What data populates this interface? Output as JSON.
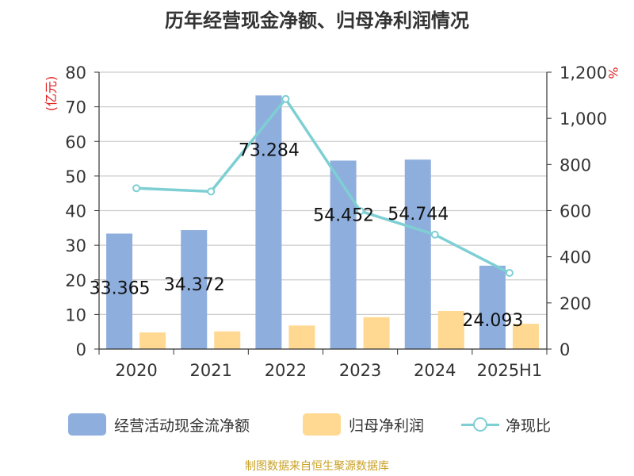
{
  "title": "历年经营现金净额、归母净利润情况",
  "source": "制图数据来自恒生聚源数据库",
  "colors": {
    "op_cash": "#8eaedd",
    "net_profit": "#ffd891",
    "ratio": "#7ecfd4",
    "grid": "#cccccc",
    "axis": "#333333",
    "unit_label": "#e02020"
  },
  "chart_data": {
    "type": "bar+line",
    "categories": [
      "2020",
      "2021",
      "2022",
      "2023",
      "2024",
      "2025H1"
    ],
    "y_left": {
      "label": "(亿元)",
      "min": 0,
      "max": 80,
      "ticks": [
        "0",
        "10",
        "20",
        "30",
        "40",
        "50",
        "60",
        "70",
        "80"
      ]
    },
    "y_right": {
      "label": "%",
      "min": 0,
      "max": 1200,
      "ticks": [
        "0",
        "200",
        "400",
        "600",
        "800",
        "1,000",
        "1,200"
      ]
    },
    "series": [
      {
        "name": "经营活动现金流净额",
        "type": "bar",
        "axis": "left",
        "values": [
          33.365,
          34.372,
          73.284,
          54.452,
          54.744,
          24.093
        ],
        "labels": [
          "33.365",
          "34.372",
          "73.284",
          "54.452",
          "54.744",
          "24.093"
        ]
      },
      {
        "name": "归母净利润",
        "type": "bar",
        "axis": "left",
        "values": [
          4.8,
          5.1,
          6.8,
          9.2,
          11.0,
          7.3
        ]
      },
      {
        "name": "净现比",
        "type": "line",
        "axis": "right",
        "values": [
          697,
          683,
          1084,
          598,
          496,
          330
        ]
      }
    ],
    "grid": true,
    "legend_position": "bottom"
  }
}
